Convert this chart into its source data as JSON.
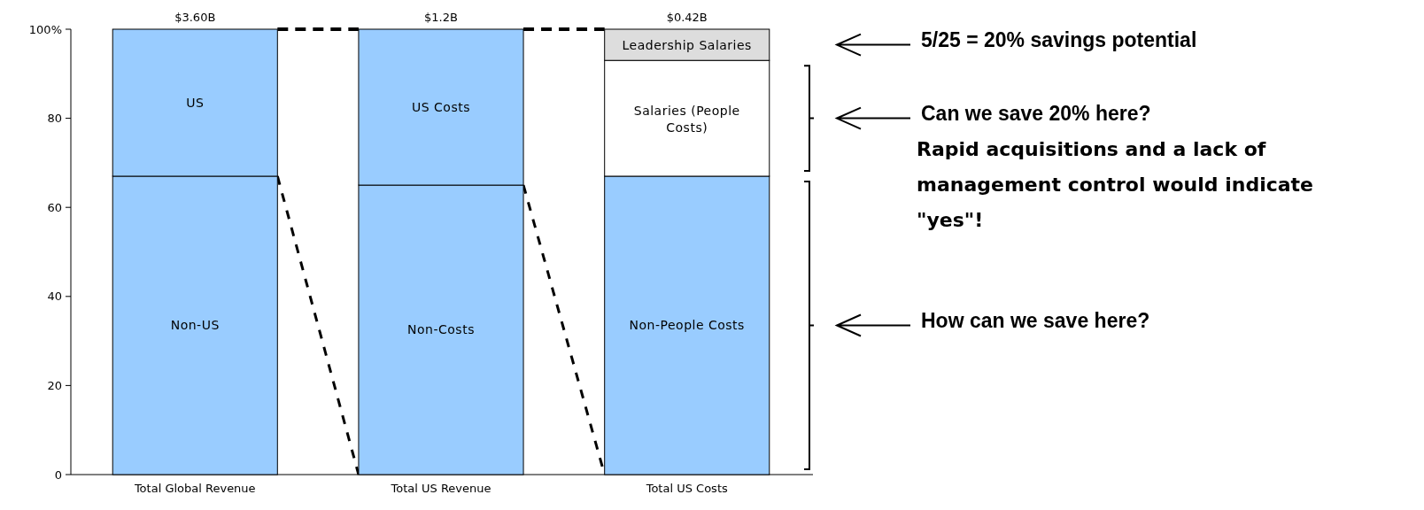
{
  "chart_data": {
    "type": "bar",
    "stacked": true,
    "categories": [
      "Total Global Revenue",
      "Total US Revenue",
      "Total US Costs"
    ],
    "series": [
      {
        "color": "#99ccff",
        "values": [
          67,
          65,
          67
        ],
        "value_labels": [
          "Non-US",
          "Non-Costs",
          "Non-People Costs"
        ]
      },
      {
        "colors": [
          "#99ccff",
          "#99ccff",
          "#ffffff"
        ],
        "values": [
          33,
          35,
          26
        ],
        "value_labels": [
          "US",
          "US Costs",
          "Salaries (People Costs)"
        ]
      },
      {
        "color": "#dddddd",
        "values": [
          null,
          null,
          7
        ],
        "value_labels": [
          null,
          null,
          "Leadership Salaries"
        ]
      }
    ],
    "ylim": [
      0,
      100
    ],
    "yticks": [
      0,
      20,
      40,
      60,
      {
        "value": 100,
        "label": "100%"
      },
      80
    ],
    "grid": false,
    "annotations": [
      {
        "text": "$3.60B",
        "x": "Total Global Revenue",
        "y": 100
      },
      {
        "text": "$1.2B",
        "x": "Total US Revenue",
        "y": 100
      },
      {
        "text": "$0.42B",
        "x": "Total US Costs",
        "y": 100
      },
      "5/25 = 20% savings potential",
      "Can we save 20% here?",
      "Rapid acquisitions and a lack of management control would indicate \"yes\"!",
      "How can we save here?"
    ]
  }
}
